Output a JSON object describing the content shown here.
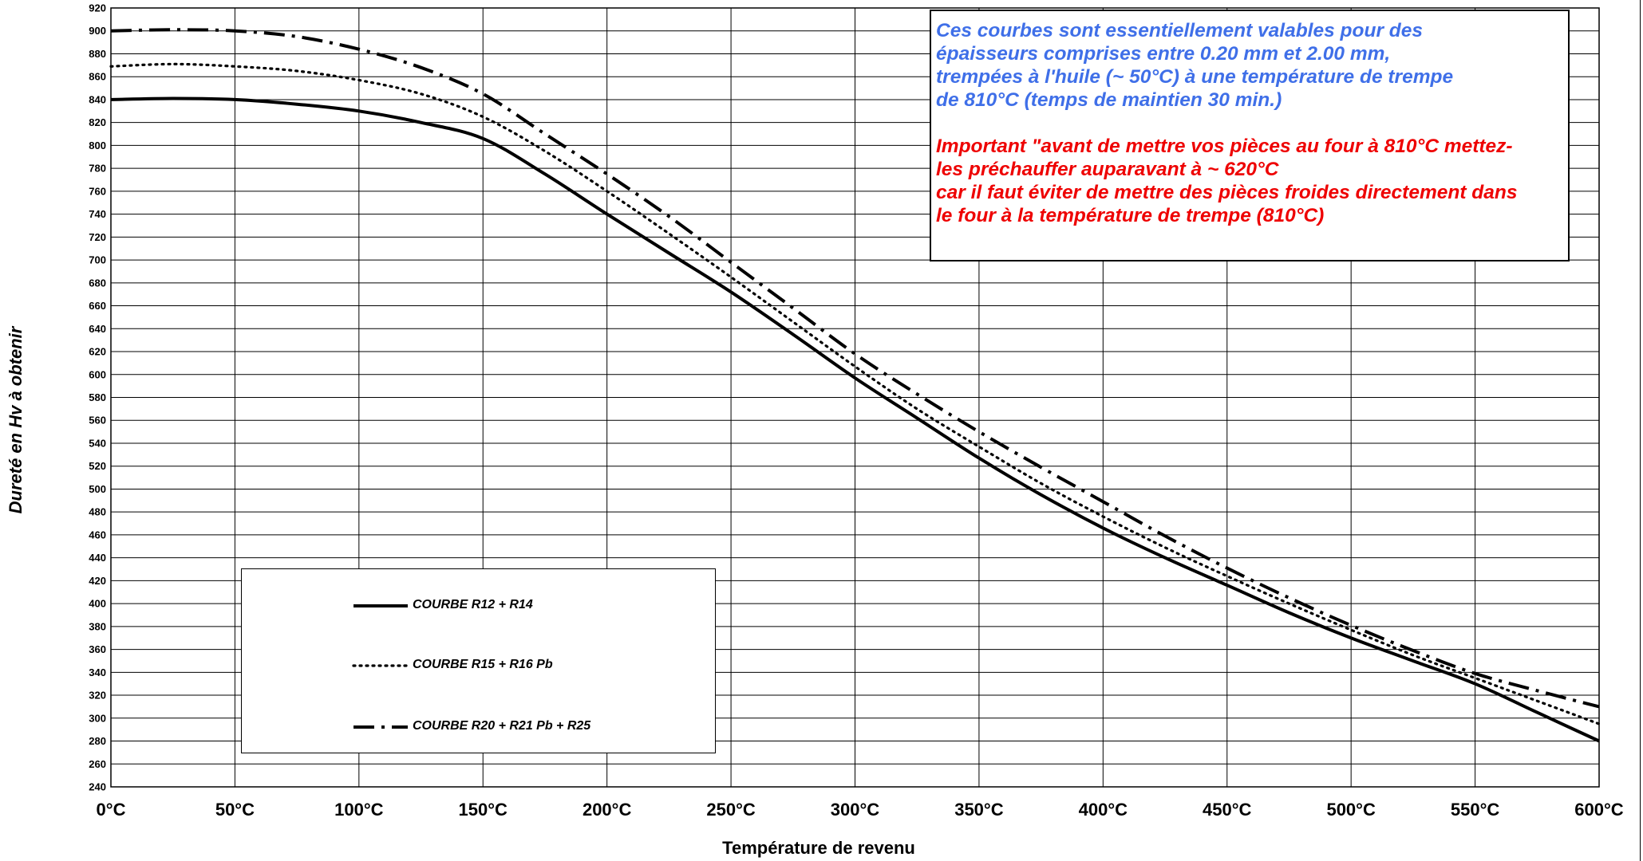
{
  "chart_data": {
    "type": "line",
    "title": "",
    "xlabel": "Température de revenu",
    "ylabel": "Dureté en Hv à obtenir",
    "xlim": [
      0,
      600
    ],
    "ylim": [
      240,
      920
    ],
    "x_ticks": [
      0,
      50,
      100,
      150,
      200,
      250,
      300,
      350,
      400,
      450,
      500,
      550,
      600
    ],
    "x_tick_labels": [
      "0°C",
      "50°C",
      "100°C",
      "150°C",
      "200°C",
      "250°C",
      "300°C",
      "350°C",
      "400°C",
      "450°C",
      "500°C",
      "550°C",
      "600°C"
    ],
    "y_ticks": [
      240,
      260,
      280,
      300,
      320,
      340,
      360,
      380,
      400,
      420,
      440,
      460,
      480,
      500,
      520,
      540,
      560,
      580,
      600,
      620,
      640,
      660,
      680,
      700,
      720,
      740,
      760,
      780,
      800,
      820,
      840,
      860,
      880,
      900,
      920
    ],
    "grid": true,
    "legend_position": "lower-left",
    "series": [
      {
        "name": "COURBE R12 + R14",
        "style": "solid",
        "x": [
          0,
          25,
          50,
          75,
          100,
          125,
          150,
          175,
          200,
          225,
          250,
          275,
          300,
          325,
          350,
          375,
          400,
          425,
          450,
          475,
          500,
          525,
          550,
          575,
          600
        ],
        "y": [
          840,
          841,
          840,
          836,
          830,
          820,
          806,
          775,
          740,
          706,
          672,
          635,
          597,
          562,
          527,
          495,
          466,
          440,
          416,
          392,
          370,
          350,
          330,
          305,
          280
        ]
      },
      {
        "name": "COURBE R15 + R16 Pb",
        "style": "dotted",
        "x": [
          0,
          25,
          50,
          75,
          100,
          125,
          150,
          175,
          200,
          225,
          250,
          275,
          300,
          325,
          350,
          375,
          400,
          425,
          450,
          475,
          500,
          525,
          550,
          575,
          600
        ],
        "y": [
          869,
          871,
          869,
          865,
          857,
          845,
          825,
          795,
          760,
          723,
          685,
          646,
          607,
          570,
          537,
          505,
          476,
          449,
          424,
          400,
          377,
          355,
          335,
          315,
          295
        ]
      },
      {
        "name": "COURBE R20 + R21 Pb + R25",
        "style": "dash-dot",
        "x": [
          0,
          25,
          50,
          75,
          100,
          125,
          150,
          175,
          200,
          225,
          250,
          275,
          300,
          325,
          350,
          375,
          400,
          425,
          450,
          475,
          500,
          525,
          550,
          575,
          600
        ],
        "y": [
          900,
          901,
          900,
          895,
          884,
          868,
          845,
          810,
          775,
          738,
          698,
          658,
          618,
          583,
          550,
          519,
          489,
          459,
          431,
          405,
          381,
          359,
          339,
          324,
          310
        ]
      }
    ]
  },
  "notes": {
    "blue_lines": [
      "Ces courbes sont essentiellement valables pour des",
      "épaisseurs comprises entre 0.20 mm et 2.00 mm,",
      "trempées à l'huile (~ 50°C) à une température de trempe",
      "de 810°C (temps de maintien 30 min.)"
    ],
    "red_lines": [
      "Important \"avant de mettre vos pièces au four à 810°C mettez-",
      "les préchauffer auparavant à ~ 620°C",
      "car il faut éviter de mettre des pièces froides directement dans",
      "le four à la température de trempe (810°C)"
    ]
  },
  "colors": {
    "blue_text": "#3f6fe8",
    "red_text": "#ee0000",
    "lines": "#000000"
  }
}
